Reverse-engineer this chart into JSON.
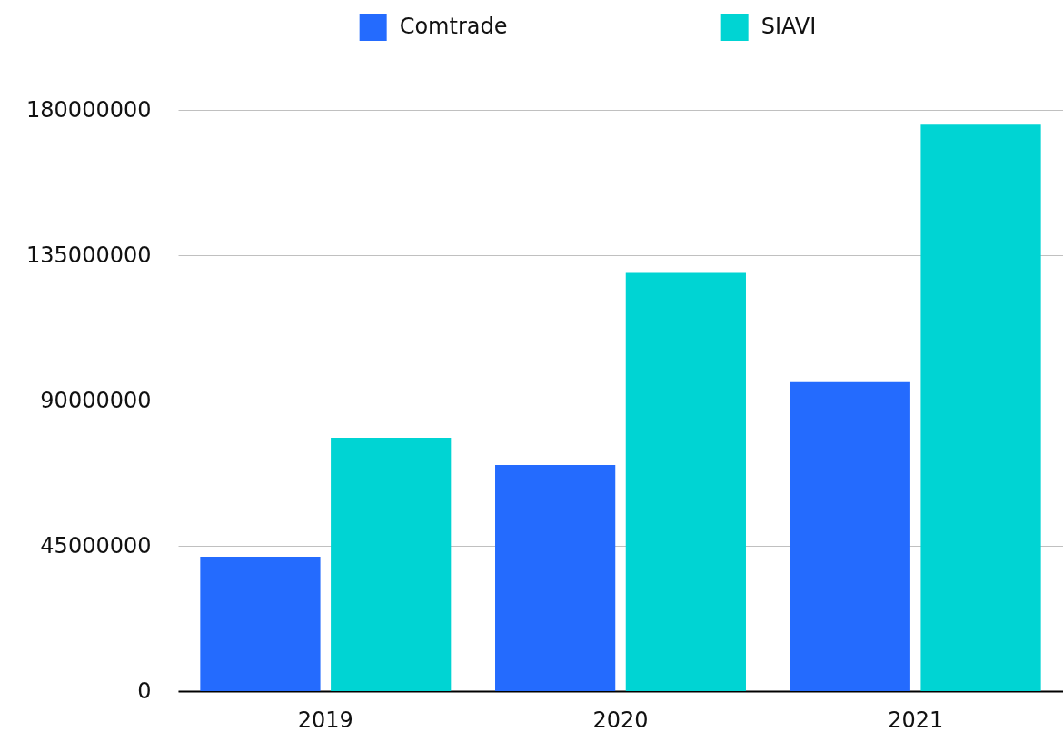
{
  "chart_data": {
    "type": "bar",
    "categories": [
      "2019",
      "2020",
      "2021"
    ],
    "series": [
      {
        "name": "Comtrade",
        "color": "#246bfe",
        "values": [
          41600000,
          70000000,
          95700000
        ]
      },
      {
        "name": "SIAVI",
        "color": "#00d4d3",
        "values": [
          78500000,
          129500000,
          175400000
        ]
      }
    ],
    "ylim": [
      0,
      180000000
    ],
    "yticks": [
      0,
      45000000,
      90000000,
      135000000,
      180000000
    ],
    "grid": "y",
    "legend": "top"
  }
}
